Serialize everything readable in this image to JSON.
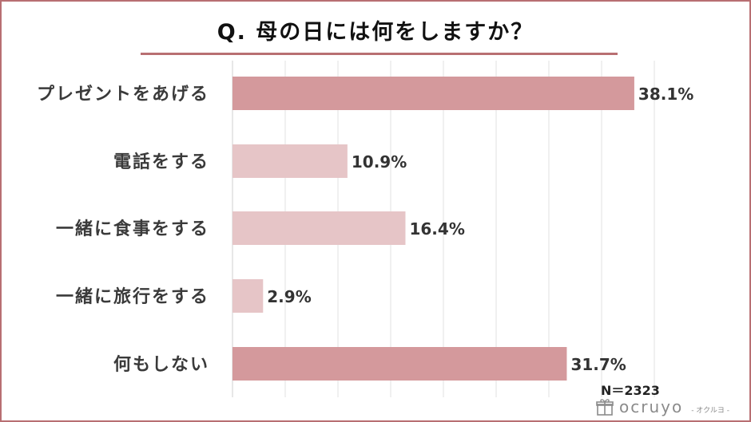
{
  "title": "Q. 母の日には何をしますか？",
  "sample_label": "N＝2323",
  "brand": {
    "name": "ocruyo",
    "sub": "- オクルヨ -",
    "icon": "gift-icon"
  },
  "colors": {
    "accent": "#b86f72",
    "bar_strong": "#d4999c",
    "bar_light": "#e6c5c7"
  },
  "chart_data": {
    "type": "bar",
    "orientation": "horizontal",
    "categories": [
      "プレゼントをあげる",
      "電話をする",
      "一緒に食事をする",
      "一緒に旅行をする",
      "何もしない"
    ],
    "values": [
      38.1,
      10.9,
      16.4,
      2.9,
      31.7
    ],
    "value_labels": [
      "38.1%",
      "10.9%",
      "16.4%",
      "2.9%",
      "31.7%"
    ],
    "highlight": [
      true,
      false,
      false,
      false,
      true
    ],
    "xlim": [
      0,
      40
    ],
    "grid": true,
    "title": "Q. 母の日には何をしますか？",
    "xlabel": "",
    "ylabel": ""
  }
}
